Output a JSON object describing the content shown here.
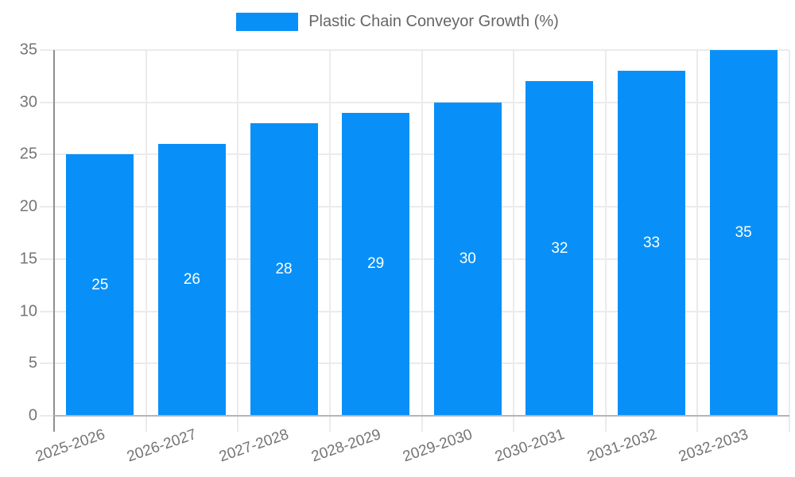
{
  "legend": {
    "label": "Plastic Chain Conveyor Growth (%)"
  },
  "chart_data": {
    "type": "bar",
    "title": "Plastic Chain Conveyor Growth (%)",
    "categories": [
      "2025-2026",
      "2026-2027",
      "2027-2028",
      "2028-2029",
      "2029-2030",
      "2030-2031",
      "2031-2032",
      "2032-2033"
    ],
    "values": [
      25,
      26,
      28,
      29,
      30,
      32,
      33,
      35
    ],
    "series_name": "Plastic Chain Conveyor Growth (%)",
    "xlabel": "",
    "ylabel": "",
    "ylim": [
      0,
      35
    ],
    "ytick_step": 5,
    "ytick_labels": [
      "0",
      "5",
      "10",
      "15",
      "20",
      "25",
      "30",
      "35"
    ],
    "grid": true,
    "legend_position": "top",
    "bar_color": "#0890f8",
    "bar_label_color": "#ffffff",
    "axis_label_color": "#757575",
    "legend_text_color": "#666666",
    "gridline_color": "#ebebeb",
    "axis_line_color": "#8f8f8f",
    "baseline_color": "#b5b5b5"
  }
}
